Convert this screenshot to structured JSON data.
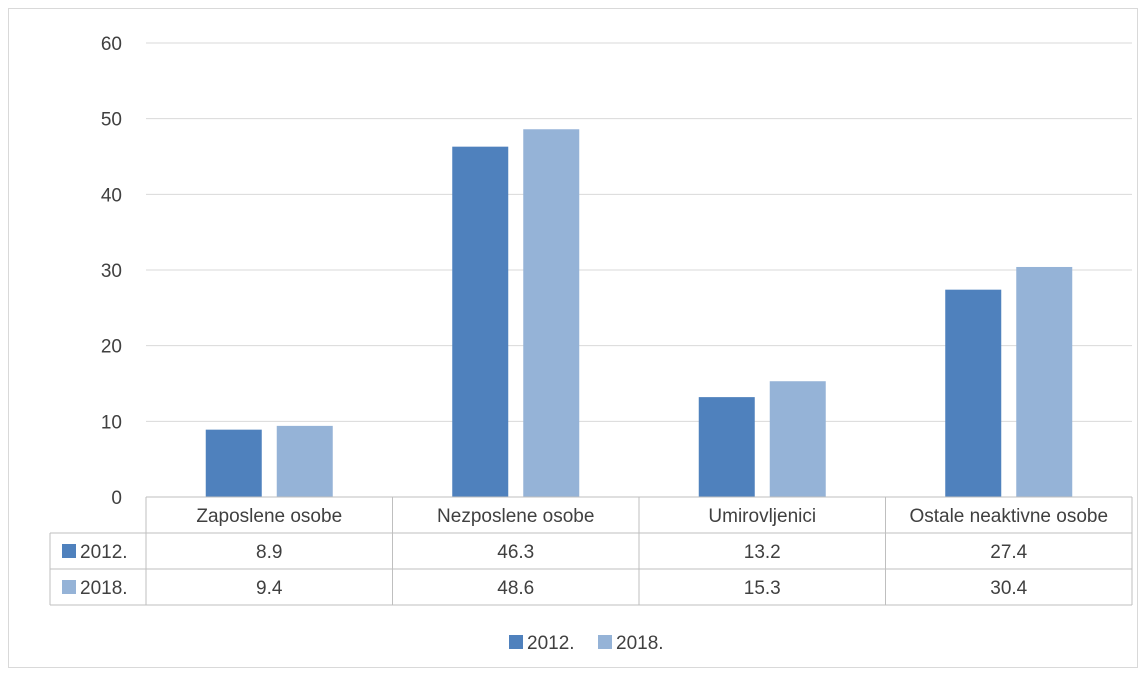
{
  "chart_data": {
    "type": "bar",
    "categories": [
      "Zaposlene osobe",
      "Nezposlene osobe",
      "Umirovljenici",
      "Ostale neaktivne osobe"
    ],
    "series": [
      {
        "name": "2012.",
        "values": [
          8.9,
          46.3,
          13.2,
          27.4
        ],
        "color": "#4f81bd"
      },
      {
        "name": "2018.",
        "values": [
          9.4,
          48.6,
          15.3,
          30.4
        ],
        "color": "#95b3d7"
      }
    ],
    "ylim": [
      0,
      60
    ],
    "yticks": [
      0,
      10,
      20,
      30,
      40,
      50,
      60
    ],
    "grid": true,
    "legend_position": "bottom",
    "data_table": true
  }
}
